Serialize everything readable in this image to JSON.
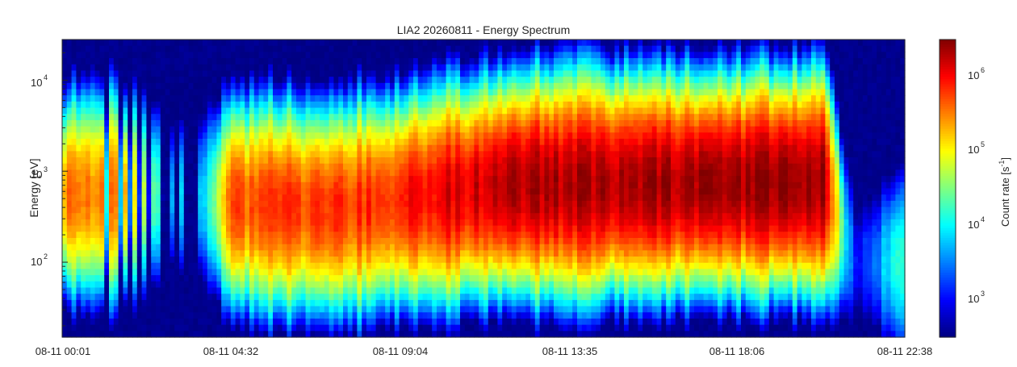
{
  "chart_data": {
    "type": "heatmap",
    "title": "LIA2 20260811 - Energy Spectrum",
    "xlabel": "",
    "ylabel": "Energy [eV]",
    "colorbar_label": "Count rate [s",
    "colorbar_label_sup": "-1",
    "colorbar_label_end": "]",
    "colormap": "jet",
    "y_scale": "log",
    "color_scale": "log",
    "ylim": [
      15,
      28000
    ],
    "clim": [
      300,
      2600000
    ],
    "x_range": [
      "08-11 00:01",
      "08-11 22:38"
    ],
    "x_ticks": [
      "08-11 00:01",
      "08-11 04:32",
      "08-11 09:04",
      "08-11 13:35",
      "08-11 18:06",
      "08-11 22:38"
    ],
    "y_ticks": [
      {
        "base": "10",
        "exp": "2",
        "value": 100
      },
      {
        "base": "10",
        "exp": "3",
        "value": 1000
      },
      {
        "base": "10",
        "exp": "4",
        "value": 10000
      }
    ],
    "colorbar_ticks": [
      {
        "base": "10",
        "exp": "3",
        "value": 1000
      },
      {
        "base": "10",
        "exp": "4",
        "value": 10000
      },
      {
        "base": "10",
        "exp": "5",
        "value": 100000
      },
      {
        "base": "10",
        "exp": "6",
        "value": 1000000
      }
    ],
    "time_profile_hours": [
      0,
      1.5,
      3.0,
      3.8,
      4.5,
      7.2,
      8.0,
      12.0,
      20.5,
      21.3,
      22.62
    ],
    "peak_energy_ev": [
      550,
      550,
      550,
      500,
      450,
      380,
      420,
      700,
      750,
      100,
      100
    ],
    "peak_count_rate": [
      260000,
      300000,
      5000,
      5000,
      380000,
      500000,
      520000,
      1600000,
      1900000,
      800,
      20000
    ],
    "grid": false,
    "legend": "none"
  }
}
